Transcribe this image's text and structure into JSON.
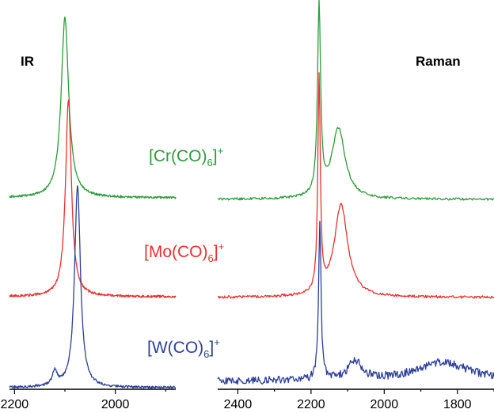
{
  "chart_data": [
    {
      "type": "line",
      "panel_label": "IR",
      "x_ticks": [
        2200,
        2000
      ],
      "xlim": [
        2210,
        1880
      ],
      "x_reversed": true,
      "ylabel": "",
      "series": [
        {
          "name": "[Cr(CO)6]+",
          "color": "#2e9b3b",
          "peaks": [
            {
              "center": 2100,
              "height": 1.0
            }
          ],
          "baseline_offset": 2
        },
        {
          "name": "[Mo(CO)6]+",
          "color": "#e8312f",
          "peaks": [
            {
              "center": 2093,
              "height": 1.0
            }
          ],
          "baseline_offset": 1
        },
        {
          "name": "[W(CO)6]+",
          "color": "#2c3f9b",
          "peaks": [
            {
              "center": 2075,
              "height": 1.0
            },
            {
              "center": 2120,
              "height": 0.07
            }
          ],
          "baseline_offset": 0
        }
      ]
    },
    {
      "type": "line",
      "panel_label": "Raman",
      "x_ticks": [
        2400,
        2200,
        2000,
        1800
      ],
      "xlim": [
        2455,
        1700
      ],
      "x_reversed": true,
      "series": [
        {
          "name": "[Cr(CO)6]+",
          "color": "#2e9b3b",
          "peaks": [
            {
              "center": 2178,
              "height": 1.0
            },
            {
              "center": 2125,
              "height": 0.37
            }
          ],
          "baseline_offset": 2
        },
        {
          "name": "[Mo(CO)6]+",
          "color": "#e8312f",
          "peaks": [
            {
              "center": 2178,
              "height": 1.0
            },
            {
              "center": 2118,
              "height": 0.43
            }
          ],
          "baseline_offset": 1
        },
        {
          "name": "[W(CO)6]+",
          "color": "#2c3f9b",
          "peaks": [
            {
              "center": 2176,
              "height": 1.0
            },
            {
              "center": 2080,
              "height": 0.12
            },
            {
              "center": 1840,
              "height": 0.12
            }
          ],
          "baseline_offset": 0
        }
      ]
    }
  ],
  "labels": {
    "ir": "IR",
    "raman": "Raman",
    "cr": {
      "pre": "[Cr(CO)",
      "sub": "6",
      "post": "]",
      "sup": "+"
    },
    "mo": {
      "pre": "[Mo(CO)",
      "sub": "6",
      "post": "]",
      "sup": "+"
    },
    "w": {
      "pre": "[W(CO)",
      "sub": "6",
      "post": "]",
      "sup": "+"
    }
  },
  "colors": {
    "cr": "#2e9b3b",
    "mo": "#e8312f",
    "w": "#2c3f9b"
  }
}
